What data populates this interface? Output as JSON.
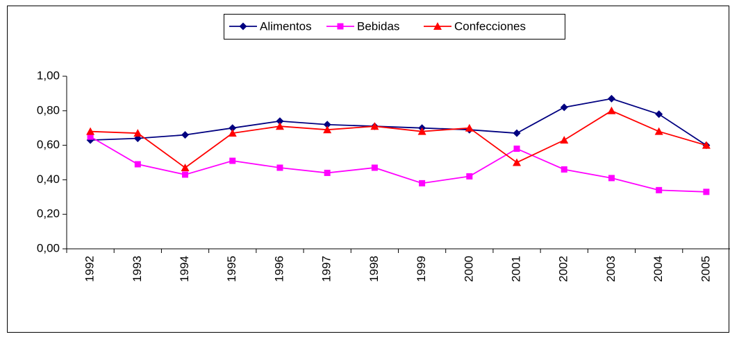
{
  "chart_data": {
    "type": "line",
    "categories": [
      "1992",
      "1993",
      "1994",
      "1995",
      "1996",
      "1997",
      "1998",
      "1999",
      "2000",
      "2001",
      "2002",
      "2003",
      "2004",
      "2005"
    ],
    "series": [
      {
        "name": "Alimentos",
        "color": "#000080",
        "marker": "diamond",
        "values": [
          0.63,
          0.64,
          0.66,
          0.7,
          0.74,
          0.72,
          0.71,
          0.7,
          0.69,
          0.67,
          0.82,
          0.87,
          0.78,
          0.6
        ]
      },
      {
        "name": "Bebidas",
        "color": "#ff00ff",
        "marker": "square",
        "values": [
          0.65,
          0.49,
          0.43,
          0.51,
          0.47,
          0.44,
          0.47,
          0.38,
          0.42,
          0.58,
          0.46,
          0.41,
          0.34,
          0.33
        ]
      },
      {
        "name": "Confecciones",
        "color": "#ff0000",
        "marker": "triangle",
        "values": [
          0.68,
          0.67,
          0.47,
          0.67,
          0.71,
          0.69,
          0.71,
          0.68,
          0.7,
          0.5,
          0.63,
          0.8,
          0.68,
          0.6
        ]
      }
    ],
    "ylim": [
      0,
      1
    ],
    "yticks": [
      {
        "value": 0,
        "label": "0,00"
      },
      {
        "value": 0.2,
        "label": "0,20"
      },
      {
        "value": 0.4,
        "label": "0,40"
      },
      {
        "value": 0.6,
        "label": "0,60"
      },
      {
        "value": 0.8,
        "label": "0,80"
      },
      {
        "value": 1,
        "label": "1,00"
      }
    ],
    "legend": "top"
  }
}
